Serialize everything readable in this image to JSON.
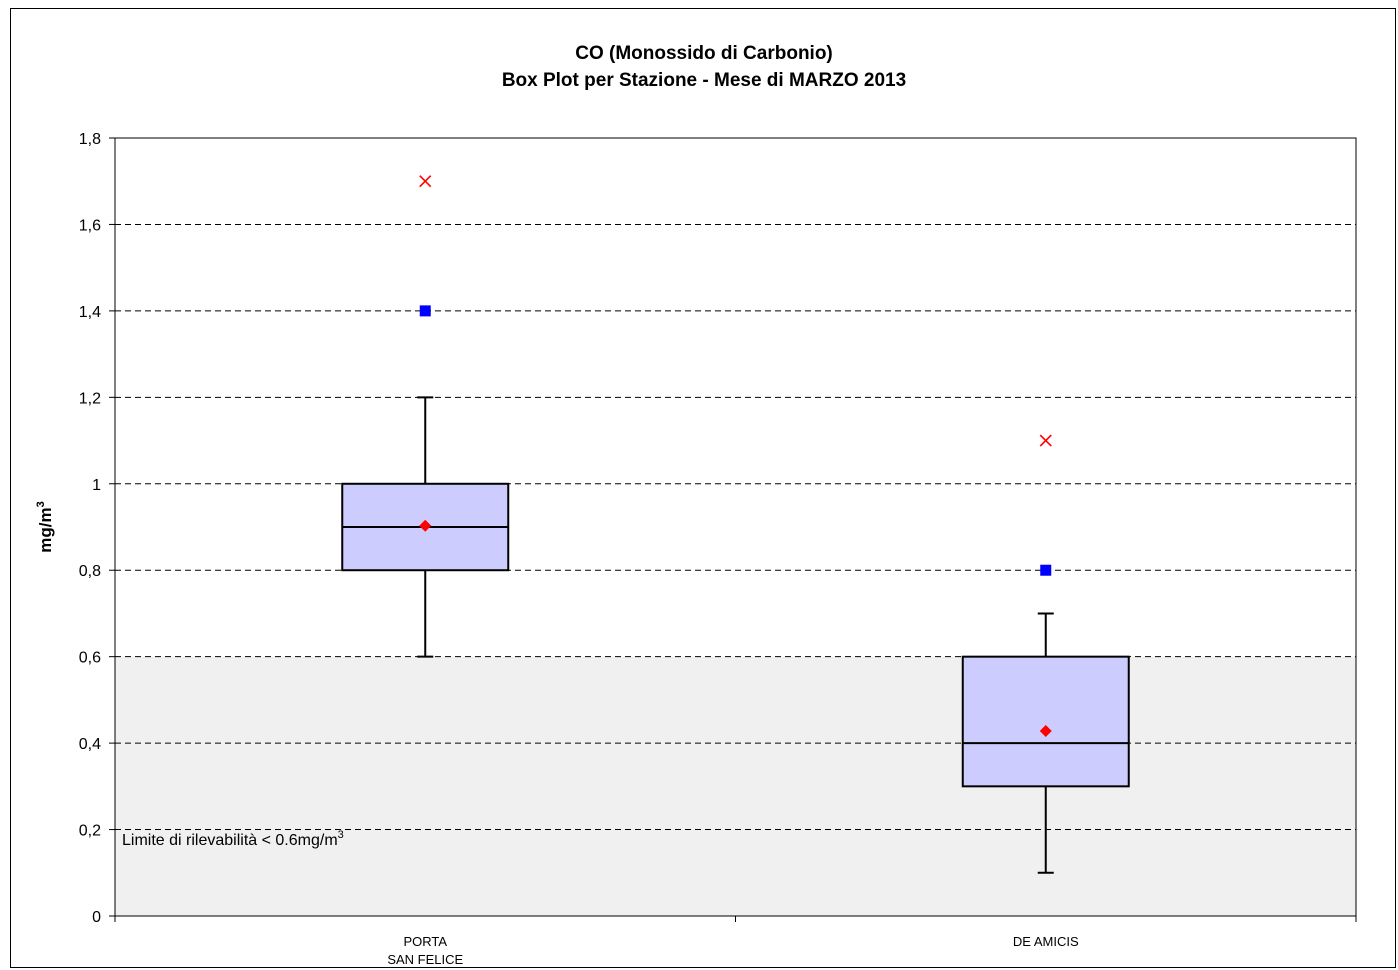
{
  "chart_data": {
    "type": "box",
    "title_lines": [
      "CO (Monossido di Carbonio)",
      "Box Plot per Stazione - Mese di MARZO 2013"
    ],
    "ylabel_main": "mg/m",
    "ylabel_sup": "3",
    "ylim": [
      0,
      1.8
    ],
    "yticks": [
      0,
      0.2,
      0.4,
      0.6,
      0.8,
      1,
      1.2,
      1.4,
      1.6,
      1.8
    ],
    "ytick_labels": [
      "0",
      "0,2",
      "0,4",
      "0,6",
      "0,8",
      "1",
      "1,2",
      "1,4",
      "1,6",
      "1,8"
    ],
    "grid": "horizontal dashed",
    "detection_limit": 0.6,
    "detection_note_main": "Limite di rilevabilità < 0.6mg/m",
    "detection_note_sup": "3",
    "categories": [
      {
        "label_lines": [
          "PORTA",
          "SAN FELICE"
        ],
        "whisker_low": 0.6,
        "q1": 0.8,
        "median": 0.9,
        "q3": 1.0,
        "whisker_high": 1.2,
        "mean": 0.903,
        "square_marker": 1.4,
        "x_marker": 1.7
      },
      {
        "label_lines": [
          "DE AMICIS"
        ],
        "whisker_low": 0.1,
        "q1": 0.3,
        "median": 0.4,
        "q3": 0.6,
        "whisker_high": 0.7,
        "mean": 0.428,
        "square_marker": 0.8,
        "x_marker": 1.1
      }
    ],
    "colors": {
      "box_fill": "#ccccff",
      "below_limit_band": "#f0f0f0",
      "mean_marker": "#ff0000",
      "square_marker": "#0000ff",
      "x_marker": "#ff0000"
    }
  }
}
